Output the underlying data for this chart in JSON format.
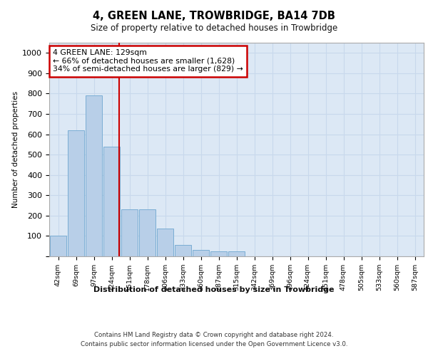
{
  "title": "4, GREEN LANE, TROWBRIDGE, BA14 7DB",
  "subtitle": "Size of property relative to detached houses in Trowbridge",
  "xlabel": "Distribution of detached houses by size in Trowbridge",
  "ylabel": "Number of detached properties",
  "footer_line1": "Contains HM Land Registry data © Crown copyright and database right 2024.",
  "footer_line2": "Contains public sector information licensed under the Open Government Licence v3.0.",
  "bar_labels": [
    "42sqm",
    "69sqm",
    "97sqm",
    "124sqm",
    "151sqm",
    "178sqm",
    "206sqm",
    "233sqm",
    "260sqm",
    "287sqm",
    "315sqm",
    "342sqm",
    "369sqm",
    "396sqm",
    "424sqm",
    "451sqm",
    "478sqm",
    "505sqm",
    "533sqm",
    "560sqm",
    "587sqm"
  ],
  "bar_values": [
    100,
    620,
    790,
    540,
    230,
    230,
    135,
    55,
    30,
    25,
    25,
    0,
    0,
    0,
    0,
    0,
    0,
    0,
    0,
    0,
    0
  ],
  "bar_color": "#b8cfe8",
  "bar_edge_color": "#7aadd4",
  "vline_color": "#cc0000",
  "vline_pos": 3.42,
  "annotation_text": "4 GREEN LANE: 129sqm\n← 66% of detached houses are smaller (1,628)\n34% of semi-detached houses are larger (829) →",
  "annotation_box_facecolor": "#ffffff",
  "annotation_box_edgecolor": "#cc0000",
  "ylim": [
    0,
    1050
  ],
  "yticks": [
    0,
    100,
    200,
    300,
    400,
    500,
    600,
    700,
    800,
    900,
    1000
  ],
  "grid_color": "#c8d8ec",
  "fig_facecolor": "#ffffff",
  "plot_bg_color": "#dce8f5"
}
